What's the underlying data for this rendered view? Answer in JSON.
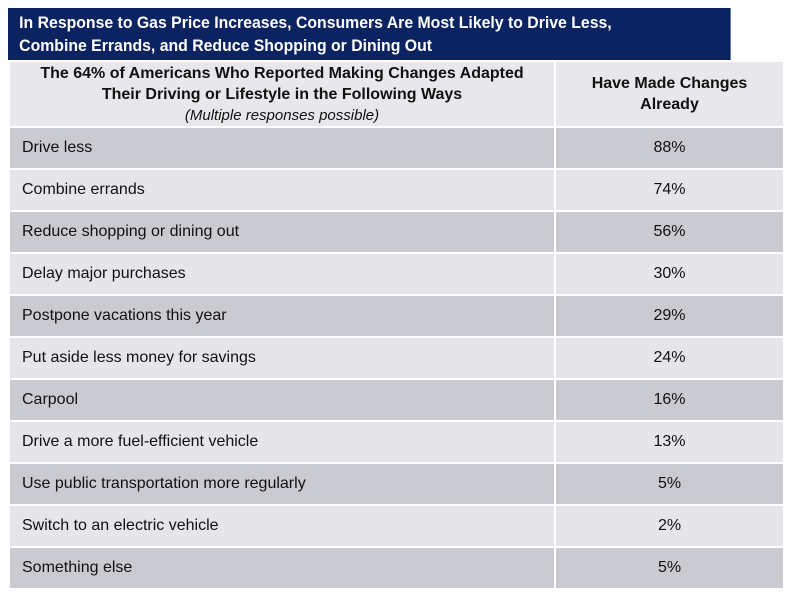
{
  "title": [
    "In Response to Gas Price Increases, Consumers Are Most Likely to Drive Less,",
    "Combine Errands, and Reduce Shopping or Dining Out"
  ],
  "chart_data": {
    "type": "table",
    "title": "In Response to Gas Price Increases, Consumers Are Most Likely to Drive Less, Combine Errands, and Reduce Shopping or Dining Out",
    "columns": [
      {
        "lines": [
          "The 64% of Americans Who Reported Making Changes Adapted",
          "Their Driving or Lifestyle in the Following Ways"
        ],
        "note": "(Multiple responses possible)"
      },
      {
        "lines": [
          "Have Made Changes",
          "Already"
        ]
      }
    ],
    "rows": [
      {
        "label": "Drive less",
        "value": "88%"
      },
      {
        "label": "Combine errands",
        "value": "74%"
      },
      {
        "label": "Reduce shopping or dining out",
        "value": "56%"
      },
      {
        "label": "Delay major purchases",
        "value": "30%"
      },
      {
        "label": "Postpone vacations this year",
        "value": "29%"
      },
      {
        "label": "Put aside less money for savings",
        "value": "24%"
      },
      {
        "label": "Carpool",
        "value": "16%"
      },
      {
        "label": "Drive a more fuel-efficient vehicle",
        "value": "13%"
      },
      {
        "label": "Use public transportation more regularly",
        "value": "5%"
      },
      {
        "label": "Switch to an electric vehicle",
        "value": "2%"
      },
      {
        "label": "Something else",
        "value": "5%"
      }
    ],
    "colors": {
      "title_bg": "#0b2360",
      "header_bg": "#e8e8ec",
      "row_dark": "#cacbd1",
      "row_light": "#e6e6ea"
    }
  }
}
